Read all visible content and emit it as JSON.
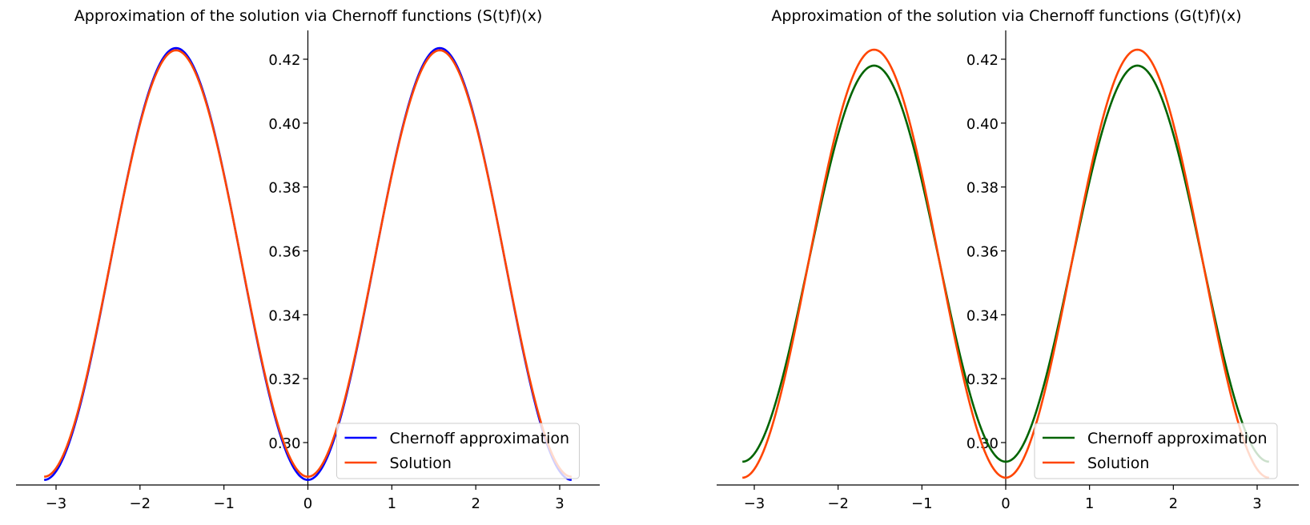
{
  "chart_data": [
    {
      "type": "line",
      "title": "Approximation of the solution via Chernoff functions (S(t)f)(x)",
      "xlabel": "",
      "ylabel": "",
      "xlim": [
        -3.47,
        3.47
      ],
      "ylim": [
        0.2833,
        0.4292
      ],
      "xticks": [
        -3,
        -2,
        -1,
        0,
        1,
        2,
        3
      ],
      "xtick_labels": [
        "−3",
        "−2",
        "−1",
        "0",
        "1",
        "2",
        "3"
      ],
      "yticks": [
        0.3,
        0.32,
        0.34,
        0.36,
        0.38,
        0.4,
        0.42
      ],
      "ytick_labels": [
        "0.30",
        "0.32",
        "0.34",
        "0.36",
        "0.38",
        "0.40",
        "0.42"
      ],
      "grid": false,
      "legend_position": "lower-right",
      "x_domain": [
        -3.14159,
        3.14159
      ],
      "series": [
        {
          "name": "Chernoff approximation",
          "color": "#0000ff",
          "formula": "a + b*sin^2(x)",
          "a": 0.2883,
          "b": 0.1352
        },
        {
          "name": "Solution",
          "color": "#ff4500",
          "formula": "a + b*sin^2(x)",
          "a": 0.2893,
          "b": 0.1335
        }
      ]
    },
    {
      "type": "line",
      "title": "Approximation of the solution via Chernoff functions (G(t)f)(x)",
      "xlabel": "",
      "ylabel": "",
      "xlim": [
        -3.47,
        3.47
      ],
      "ylim": [
        0.2833,
        0.4292
      ],
      "xticks": [
        -3,
        -2,
        -1,
        0,
        1,
        2,
        3
      ],
      "xtick_labels": [
        "−3",
        "−2",
        "−1",
        "0",
        "1",
        "2",
        "3"
      ],
      "yticks": [
        0.3,
        0.32,
        0.34,
        0.36,
        0.38,
        0.4,
        0.42
      ],
      "ytick_labels": [
        "0.30",
        "0.32",
        "0.34",
        "0.36",
        "0.38",
        "0.40",
        "0.42"
      ],
      "grid": false,
      "legend_position": "lower-right",
      "x_domain": [
        -3.14159,
        3.14159
      ],
      "series": [
        {
          "name": "Chernoff approximation",
          "color": "#006400",
          "formula": "a + b*sin^2(x)",
          "a": 0.294,
          "b": 0.124
        },
        {
          "name": "Solution",
          "color": "#ff4500",
          "formula": "a + b*sin^2(x)",
          "a": 0.289,
          "b": 0.134
        }
      ]
    }
  ]
}
